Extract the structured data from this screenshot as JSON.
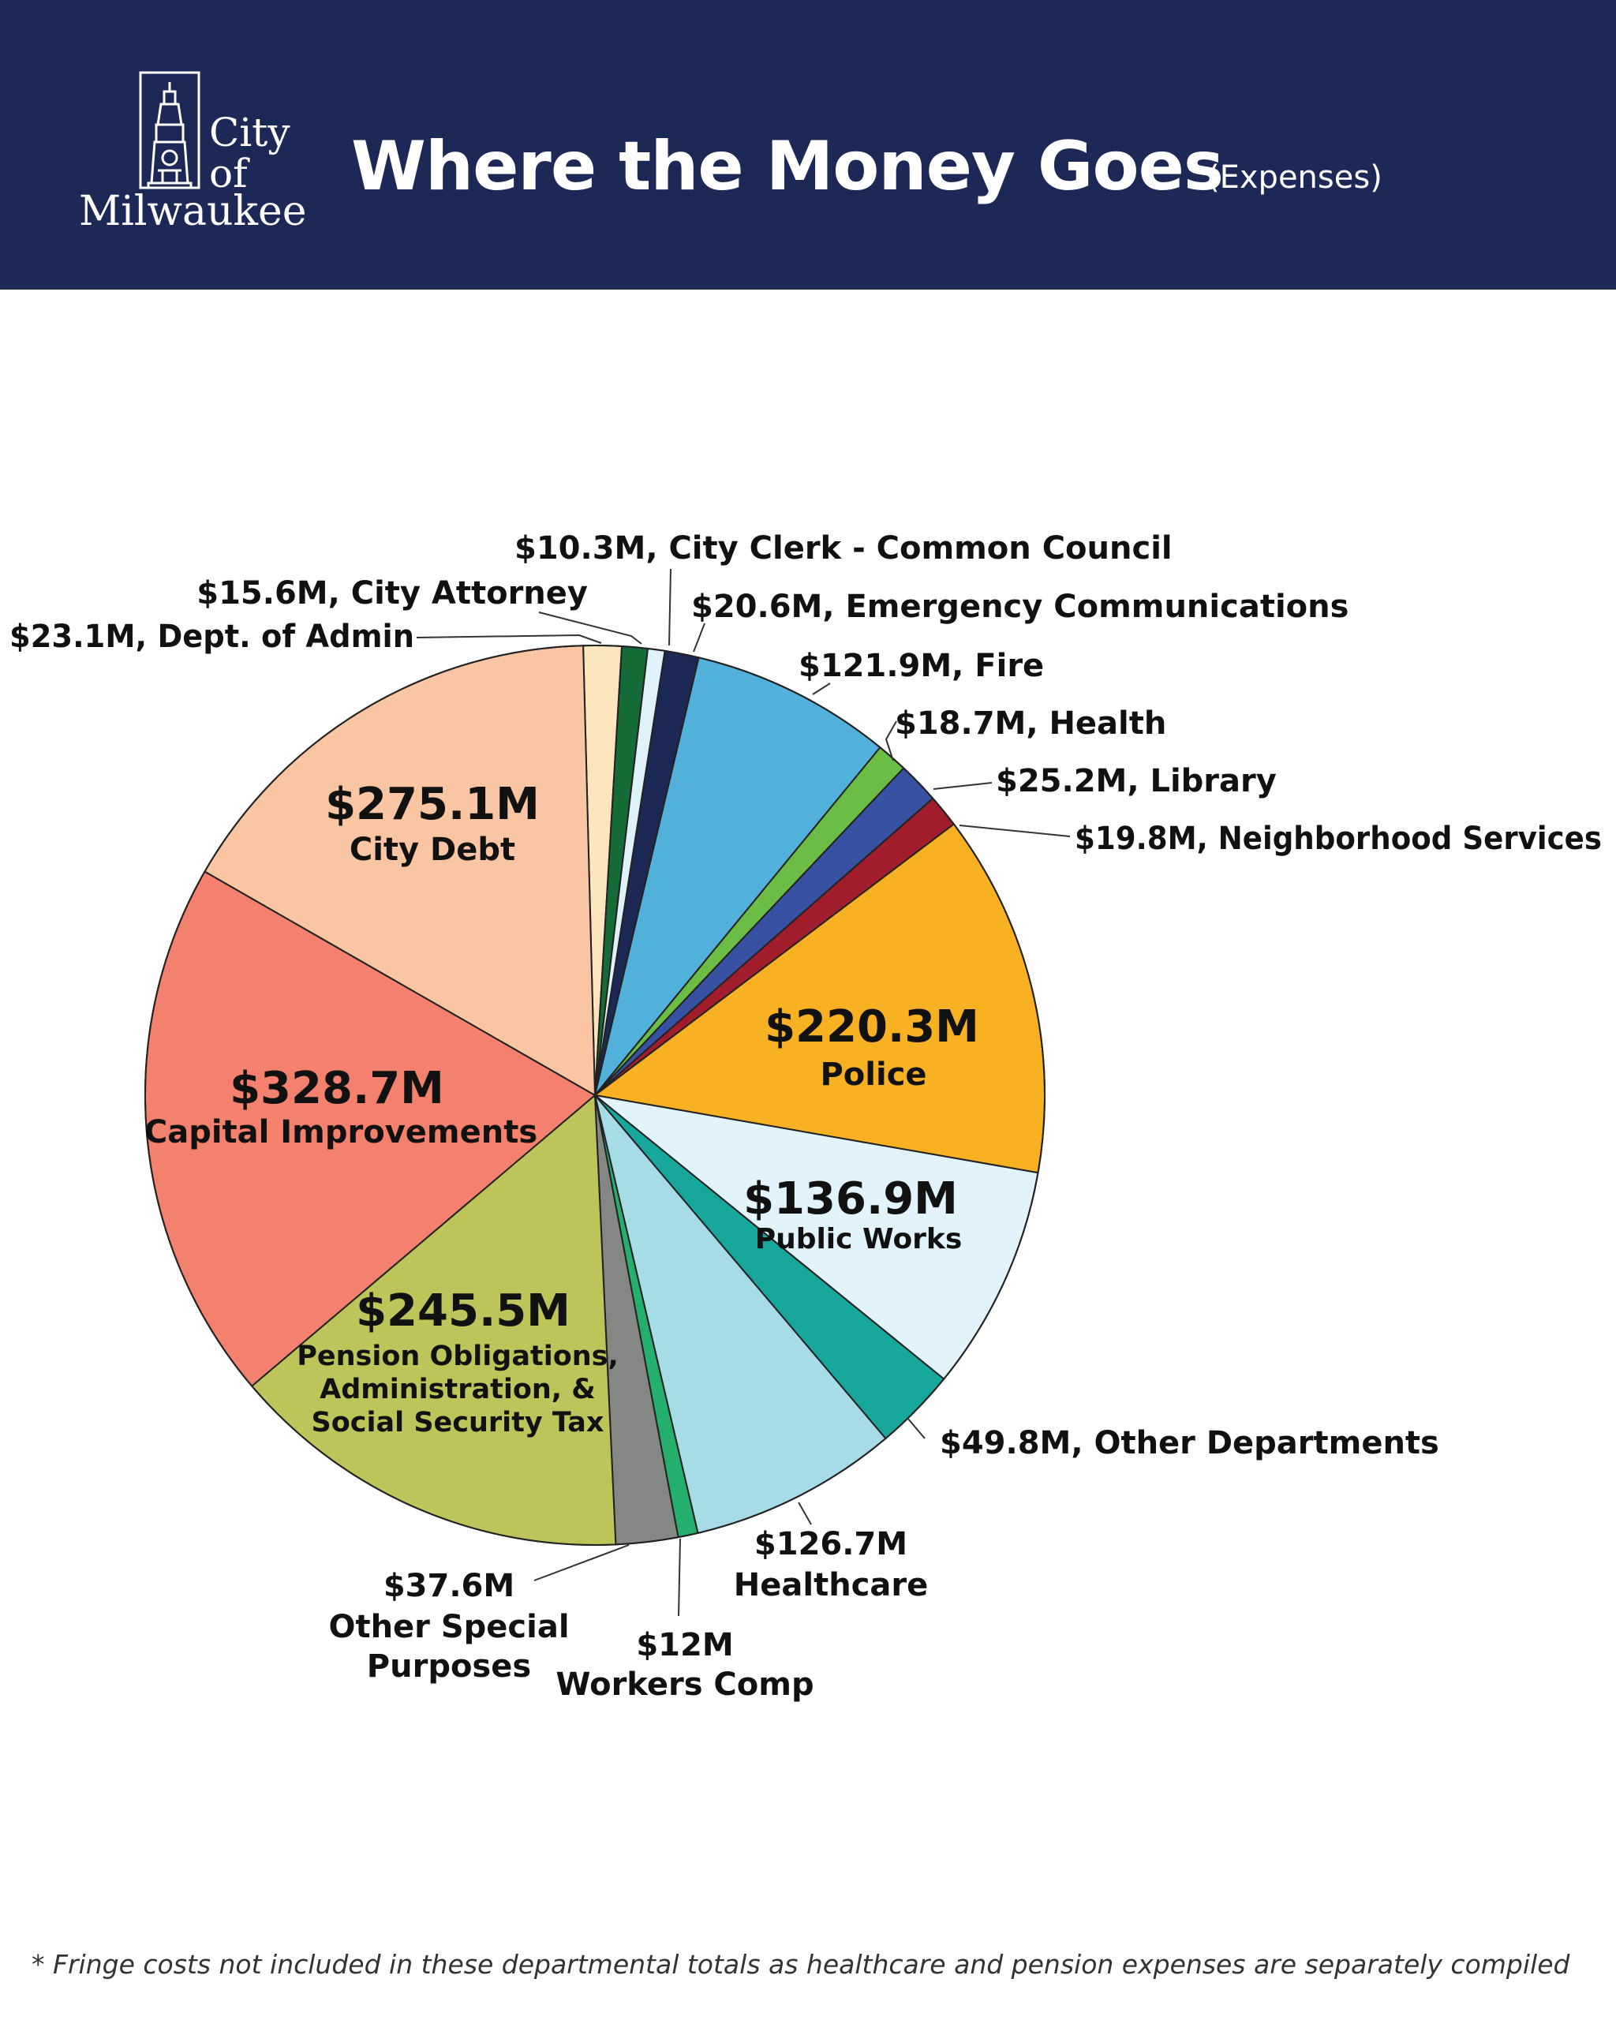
{
  "header": {
    "logo_city": "City",
    "logo_of": "of",
    "logo_milwaukee": "Milwaukee",
    "title": "Where the Money Goes",
    "subtitle": "(Expenses)"
  },
  "colors": {
    "header_bg": "#1c2856"
  },
  "footnote": "* Fringe costs not included in these departmental totals as healthcare and pension expenses are separately compiled",
  "chart_data": {
    "type": "pie",
    "title": "Where the Money Goes",
    "units": "$M",
    "slices": [
      {
        "label": "Dept. of Admin",
        "value": 23.1,
        "value_text": "$23.1M",
        "color": "#fde6bd",
        "label_style": "callout",
        "text": "$23.1M, Dept. of Admin"
      },
      {
        "label": "City Attorney",
        "value": 15.6,
        "value_text": "$15.6M",
        "color": "#146b38",
        "label_style": "callout",
        "text": "$15.6M, City Attorney"
      },
      {
        "label": "City Clerk - Common Council",
        "value": 10.3,
        "value_text": "$10.3M",
        "color": "#dff2fa",
        "label_style": "callout",
        "text": "$10.3M, City Clerk - Common Council"
      },
      {
        "label": "Emergency Communications",
        "value": 20.6,
        "value_text": "$20.6M",
        "color": "#1c2856",
        "label_style": "callout",
        "text": "$20.6M, Emergency Communications"
      },
      {
        "label": "Fire",
        "value": 121.9,
        "value_text": "$121.9M",
        "color": "#51b1da",
        "label_style": "callout",
        "text": "$121.9M, Fire"
      },
      {
        "label": "Health",
        "value": 18.7,
        "value_text": "$18.7M",
        "color": "#6cbd45",
        "label_style": "callout",
        "text": "$18.7M, Health"
      },
      {
        "label": "Library",
        "value": 25.2,
        "value_text": "$25.2M",
        "color": "#3851a3",
        "label_style": "callout",
        "text": "$25.2M, Library"
      },
      {
        "label": "Neighborhood Services",
        "value": 19.8,
        "value_text": "$19.8M",
        "color": "#a11d2b",
        "label_style": "callout",
        "text": "$19.8M, Neighborhood Services"
      },
      {
        "label": "Police",
        "value": 220.3,
        "value_text": "$220.3M",
        "color": "#f8b122",
        "label_style": "inside",
        "name_lines": [
          "Police"
        ]
      },
      {
        "label": "Public Works",
        "value": 136.9,
        "value_text": "$136.9M",
        "color": "#e1f3fb",
        "label_style": "inside",
        "name_lines": [
          "Public Works"
        ]
      },
      {
        "label": "Other Departments",
        "value": 49.8,
        "value_text": "$49.8M",
        "color": "#17a89b",
        "label_style": "callout",
        "text": "$49.8M, Other Departments"
      },
      {
        "label": "Healthcare",
        "value": 126.7,
        "value_text": "$126.7M",
        "color": "#a6dce6",
        "label_style": "callout",
        "lines": [
          "$126.7M",
          "Healthcare"
        ]
      },
      {
        "label": "Workers Comp",
        "value": 12,
        "value_text": "$12M",
        "color": "#24b06c",
        "label_style": "callout",
        "lines": [
          "$12M",
          "Workers Comp"
        ]
      },
      {
        "label": "Other Special Purposes",
        "value": 37.6,
        "value_text": "$37.6M",
        "color": "#858785",
        "label_style": "callout",
        "lines": [
          "$37.6M",
          "Other Special",
          "Purposes"
        ]
      },
      {
        "label": "Pension Obligations, Administration, & Social Security Tax",
        "value": 245.5,
        "value_text": "$245.5M",
        "color": "#bcc45a",
        "label_style": "inside",
        "name_lines": [
          "Pension Obligations,",
          "Administration, &",
          "Social Security Tax"
        ]
      },
      {
        "label": "Capital Improvements",
        "value": 328.7,
        "value_text": "$328.7M",
        "color": "#f3816d",
        "label_style": "inside",
        "name_lines": [
          "Capital Improvements"
        ]
      },
      {
        "label": "City Debt",
        "value": 275.1,
        "value_text": "$275.1M",
        "color": "#f9c5a2",
        "label_style": "inside",
        "name_lines": [
          "City Debt"
        ]
      }
    ]
  }
}
